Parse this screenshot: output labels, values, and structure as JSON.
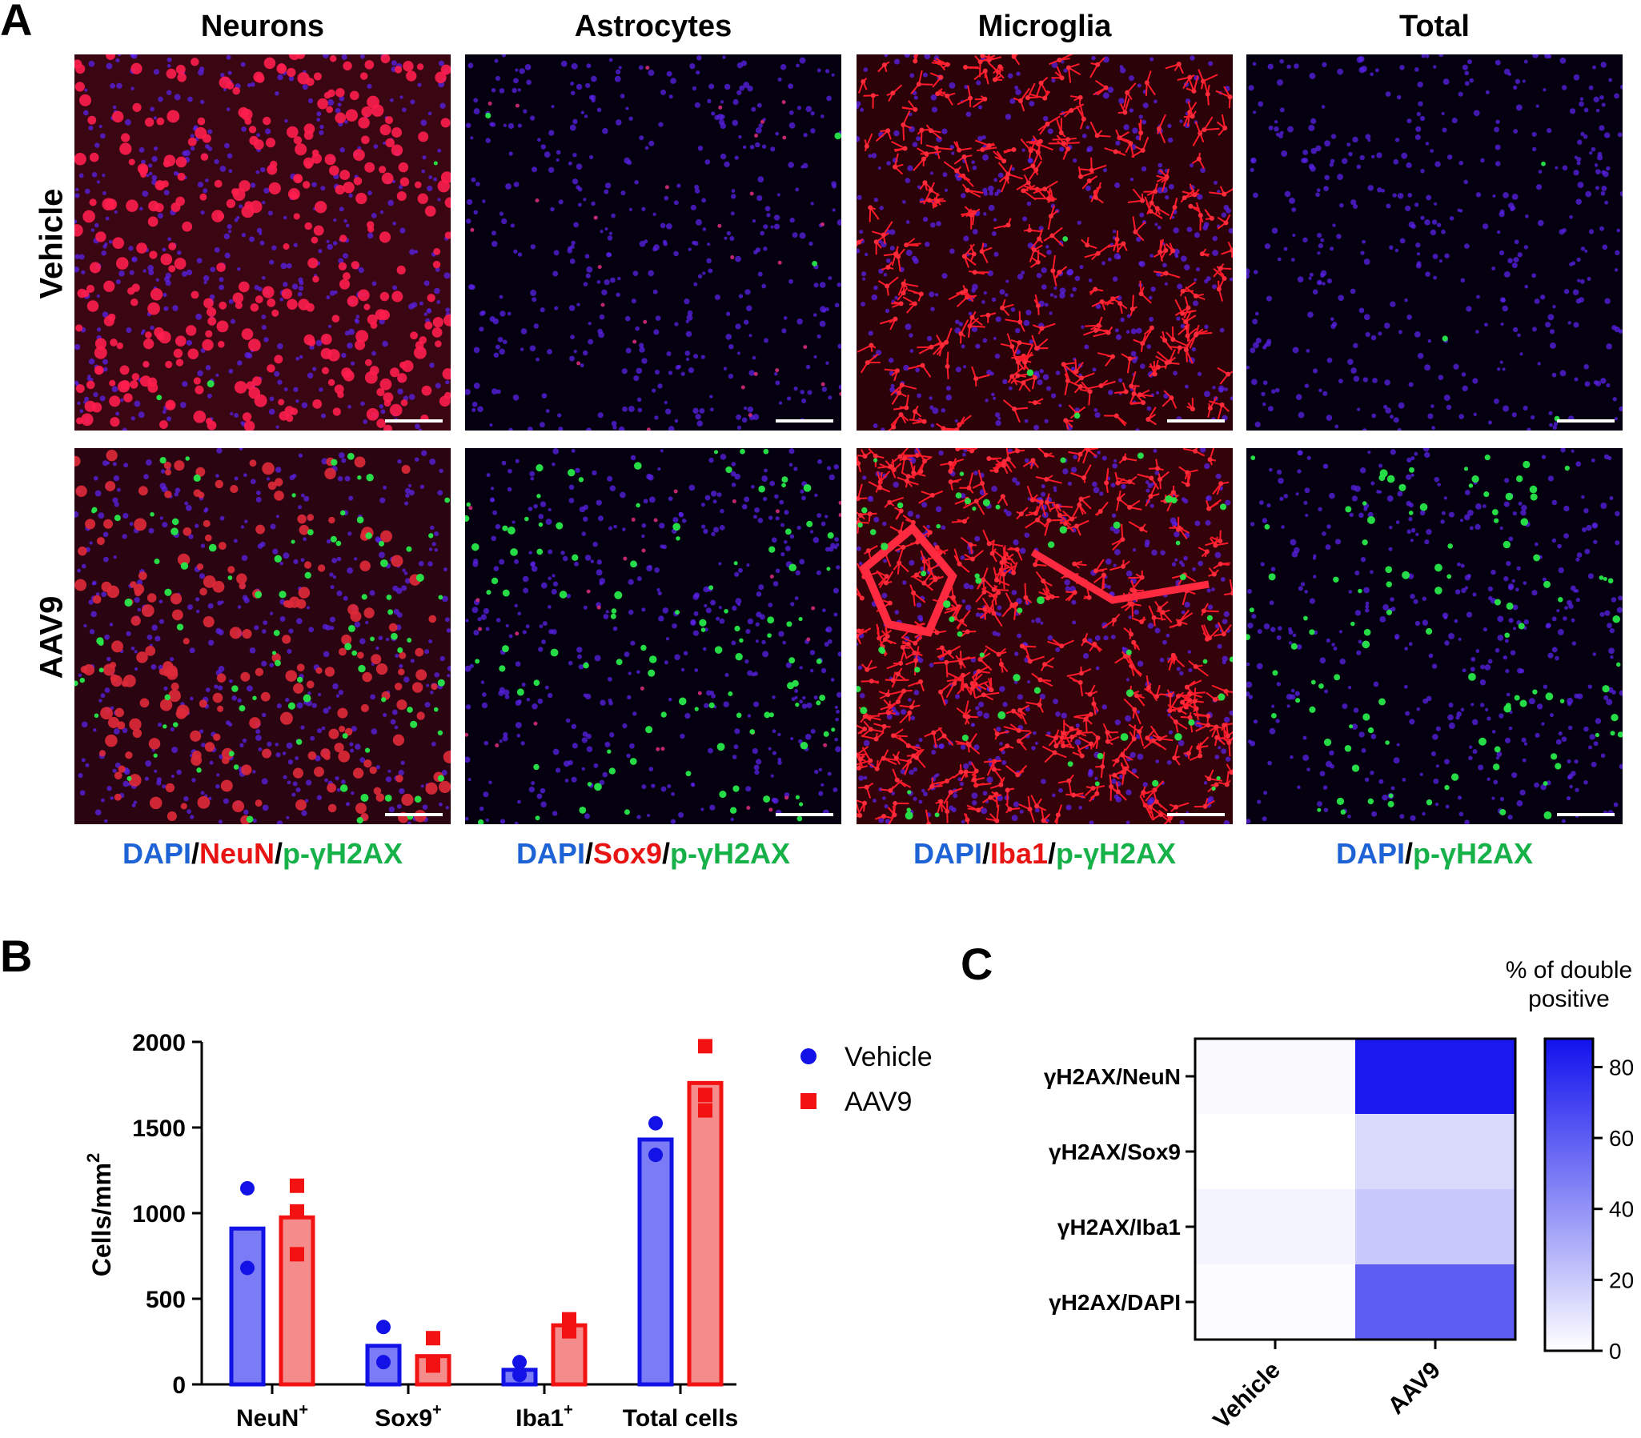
{
  "panel_a": {
    "letter": "A",
    "columns": [
      "Neurons",
      "Astrocytes",
      "Microglia",
      "Total"
    ],
    "rows": [
      "Vehicle",
      "AAV9"
    ],
    "images": [
      {
        "name": "micrograph-vehicle-neurons",
        "red": "nuclei",
        "green": 0.01
      },
      {
        "name": "micrograph-vehicle-astrocytes",
        "red": "sparse",
        "green": 0.01
      },
      {
        "name": "micrograph-vehicle-microglia",
        "red": "branched",
        "green": 0.01
      },
      {
        "name": "micrograph-vehicle-total",
        "red": "none",
        "green": 0.01
      },
      {
        "name": "micrograph-aav9-neurons",
        "red": "nuclei-dim",
        "green": 0.3
      },
      {
        "name": "micrograph-aav9-astrocytes",
        "red": "sparse",
        "green": 0.35
      },
      {
        "name": "micrograph-aav9-microglia",
        "red": "branched-dense",
        "green": 0.2
      },
      {
        "name": "micrograph-aav9-total",
        "red": "none",
        "green": 0.35
      }
    ],
    "stain_labels": [
      {
        "dapi": "DAPI",
        "sep1": "/",
        "marker": "NeuN",
        "sep2": "/",
        "gh2ax": "p-γH2AX"
      },
      {
        "dapi": "DAPI",
        "sep1": "/",
        "marker": "Sox9",
        "sep2": "/",
        "gh2ax": "p-γH2AX"
      },
      {
        "dapi": "DAPI",
        "sep1": "/",
        "marker": "Iba1",
        "sep2": "/",
        "gh2ax": "p-γH2AX"
      },
      {
        "dapi": "DAPI",
        "sep1": "/",
        "gh2ax": "p-γH2AX"
      }
    ]
  },
  "panel_b": {
    "letter": "B"
  },
  "panel_c": {
    "letter": "C"
  },
  "chart_data": [
    {
      "type": "bar",
      "panel": "B",
      "ylabel": "Cells/mm",
      "ylabel_sup": "2",
      "ylim": [
        0,
        2000
      ],
      "yticks": [
        0,
        500,
        1000,
        1500,
        2000
      ],
      "categories": [
        {
          "label": "NeuN",
          "sup": "+"
        },
        {
          "label": "Sox9",
          "sup": "+"
        },
        {
          "label": "Iba1",
          "sup": "+"
        },
        {
          "label": "Total cells",
          "sup": ""
        }
      ],
      "series": [
        {
          "name": "Vehicle",
          "color": "#1212e6",
          "fill": "#7b7bf5",
          "marker": "circle",
          "values": [
            910,
            225,
            85,
            1430
          ],
          "points": [
            [
              1145,
              680
            ],
            [
              335,
              130
            ],
            [
              130,
              55
            ],
            [
              1525,
              1340
            ]
          ]
        },
        {
          "name": "AAV9",
          "color": "#f21212",
          "fill": "#f58c8c",
          "marker": "square",
          "values": [
            975,
            165,
            345,
            1760
          ],
          "points": [
            [
              1160,
              1010,
              760
            ],
            [
              270,
              120,
              110
            ],
            [
              380,
              340,
              310
            ],
            [
              1975,
              1690,
              1600
            ]
          ]
        }
      ],
      "legend_position": "top-right",
      "grid": false
    },
    {
      "type": "heatmap",
      "panel": "C",
      "x_categories": [
        "Vehicle",
        "AAV9"
      ],
      "y_categories": [
        "γH2AX/NeuN",
        "γH2AX/Sox9",
        "γH2AX/Iba1",
        "γH2AX/DAPI"
      ],
      "values": [
        [
          1.5,
          85
        ],
        [
          0.5,
          14
        ],
        [
          4,
          20
        ],
        [
          1,
          60
        ]
      ],
      "colorbar": {
        "title_line1": "% of double",
        "title_line2": "positive",
        "ticks": [
          0,
          20,
          40,
          60,
          80
        ],
        "range": [
          0,
          88
        ],
        "color_low": "#ffffff",
        "color_high": "#1111ee"
      }
    }
  ]
}
